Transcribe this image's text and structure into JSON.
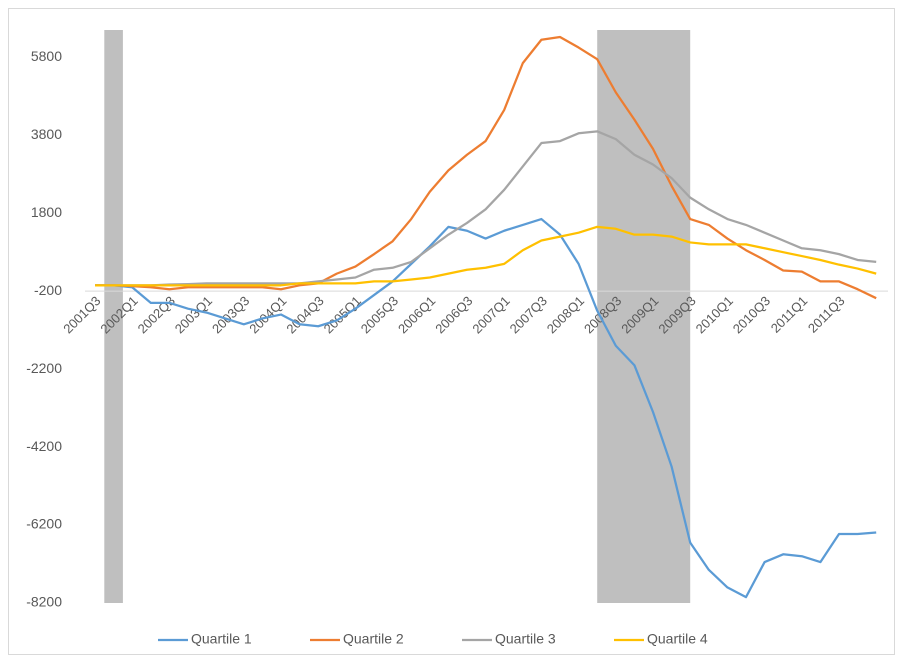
{
  "chart_data": {
    "type": "line",
    "categories": [
      "2001Q3",
      null,
      "2002Q1",
      null,
      "2002Q3",
      null,
      "2003Q1",
      null,
      "2003Q3",
      null,
      "2004Q1",
      null,
      "2004Q3",
      null,
      "2005Q1",
      null,
      "2005Q3",
      null,
      "2006Q1",
      null,
      "2006Q3",
      null,
      "2007Q1",
      null,
      "2007Q3",
      null,
      "2008Q1",
      null,
      "2008Q3",
      null,
      "2009Q1",
      null,
      "2009Q3",
      null,
      "2010Q1",
      null,
      "2010Q3",
      null,
      "2011Q1",
      null,
      "2011Q3",
      null,
      null
    ],
    "series": [
      {
        "name": "Quartile 1",
        "color": "#5b9bd5",
        "values": [
          -50,
          -50,
          -100,
          -500,
          -500,
          -650,
          -750,
          -900,
          -1050,
          -900,
          -800,
          -1050,
          -1100,
          -950,
          -650,
          -300,
          50,
          500,
          950,
          1450,
          1350,
          1150,
          1350,
          1500,
          1650,
          1250,
          500,
          -700,
          -1600,
          -2100,
          -3300,
          -4700,
          -6650,
          -7350,
          -7800,
          -8050,
          -7150,
          -6950,
          -7000,
          -7150,
          -6430,
          -6430,
          -6390
        ]
      },
      {
        "name": "Quartile 2",
        "color": "#ed7d31",
        "values": [
          -50,
          -50,
          -70,
          -100,
          -150,
          -100,
          -100,
          -100,
          -100,
          -100,
          -150,
          -50,
          0,
          250,
          430,
          750,
          1080,
          1650,
          2350,
          2900,
          3300,
          3650,
          4450,
          5650,
          6250,
          6320,
          6050,
          5750,
          4900,
          4200,
          3450,
          2500,
          1650,
          1500,
          1150,
          850,
          600,
          330,
          300,
          50,
          50,
          -150,
          -380
        ]
      },
      {
        "name": "Quartile 3",
        "color": "#a5a5a5",
        "values": [
          -50,
          -50,
          -50,
          -50,
          -30,
          -20,
          0,
          0,
          0,
          0,
          0,
          0,
          50,
          100,
          150,
          350,
          400,
          550,
          900,
          1250,
          1550,
          1900,
          2400,
          3000,
          3600,
          3650,
          3850,
          3900,
          3700,
          3300,
          3050,
          2700,
          2200,
          1900,
          1650,
          1500,
          1300,
          1100,
          900,
          850,
          750,
          600,
          550
        ]
      },
      {
        "name": "Quartile 4",
        "color": "#ffc000",
        "values": [
          -50,
          -50,
          -50,
          -50,
          -50,
          -50,
          -50,
          -50,
          -50,
          -50,
          -50,
          0,
          0,
          0,
          0,
          50,
          50,
          100,
          150,
          250,
          350,
          400,
          500,
          850,
          1100,
          1200,
          1300,
          1450,
          1400,
          1250,
          1250,
          1200,
          1050,
          1000,
          1000,
          1000,
          900,
          800,
          700,
          600,
          480,
          380,
          250
        ]
      }
    ],
    "shaded_regions": [
      [
        0.5,
        1.5
      ],
      [
        27,
        32
      ]
    ],
    "shade_color": "#bfbfbf",
    "ylim": [
      -8200,
      6500
    ],
    "yticks": [
      -8200,
      -6200,
      -4200,
      -2200,
      -200,
      1800,
      3800,
      5800
    ],
    "x_axis_at": -200,
    "legend": "bottom"
  }
}
